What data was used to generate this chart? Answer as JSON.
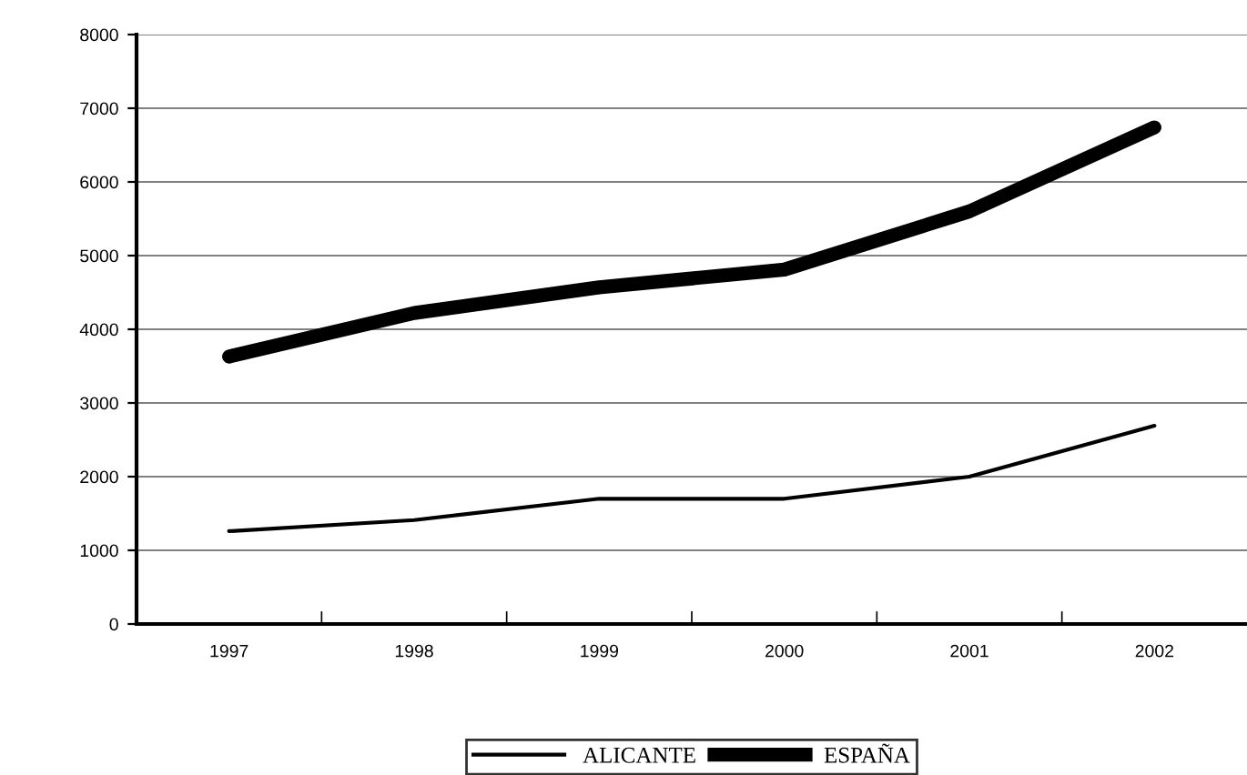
{
  "chart_data": {
    "type": "line",
    "categories": [
      "1997",
      "1998",
      "1999",
      "2000",
      "2001",
      "2002"
    ],
    "series": [
      {
        "name": "ALICANTE",
        "color": "#000000",
        "values": [
          1260,
          1410,
          1700,
          1700,
          2000,
          2690
        ]
      },
      {
        "name": "ESPAÑA",
        "color": "#000000",
        "values": [
          3630,
          4220,
          4570,
          4810,
          5600,
          6740
        ]
      }
    ],
    "ylim": [
      0,
      8000
    ],
    "yticks": [
      0,
      1000,
      2000,
      3000,
      4000,
      5000,
      6000,
      7000,
      8000
    ],
    "grid": "y",
    "legend": "bottom"
  }
}
